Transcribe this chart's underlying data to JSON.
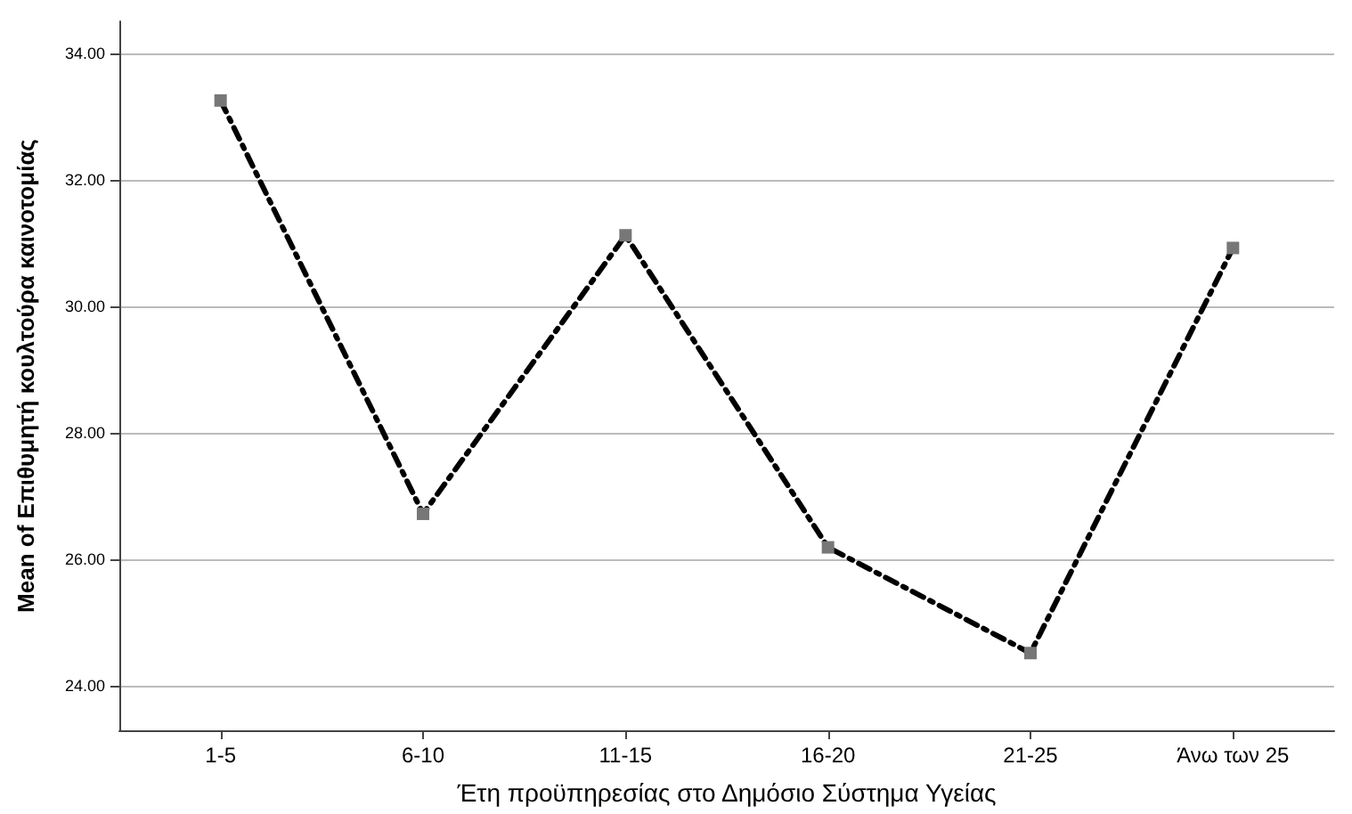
{
  "chart_data": {
    "type": "line",
    "xlabel": "Έτη προϋπηρεσίας στο Δημόσιο Σύστημα Υγείας",
    "ylabel": "Mean of Επιθυμητή κουλτούρα καινοτομίας",
    "categories": [
      "1-5",
      "6-10",
      "11-15",
      "16-20",
      "21-25",
      "Άνω των 25"
    ],
    "series": [
      {
        "color": "#000000",
        "values": [
          33.25,
          26.72,
          31.12,
          26.19,
          24.52,
          30.92
        ]
      }
    ],
    "ylim": [
      23.3,
      34.5
    ],
    "yticks": [
      {
        "value": 24,
        "label": "24.00"
      },
      {
        "value": 26,
        "label": "26.00"
      },
      {
        "value": 28,
        "label": "28.00"
      },
      {
        "value": 30,
        "label": "30.00"
      },
      {
        "value": 32,
        "label": "32.00"
      },
      {
        "value": 34,
        "label": "34.00"
      }
    ],
    "grid": "y",
    "marker": "square",
    "line_style": "dashed"
  }
}
